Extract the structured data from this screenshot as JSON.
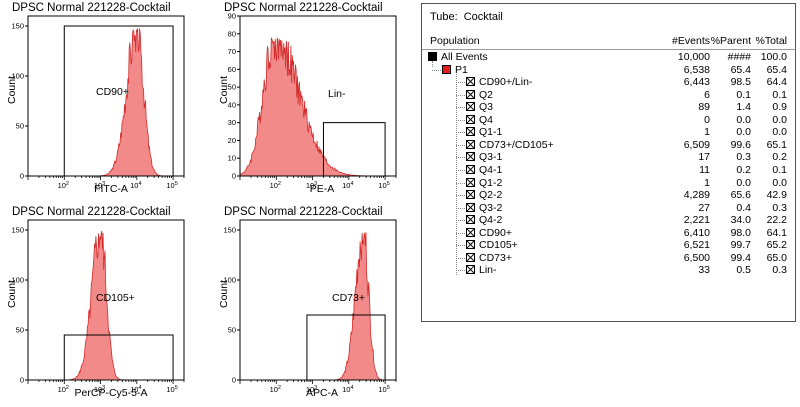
{
  "chart_data": [
    {
      "type": "histogram",
      "title": "DPSC Normal 221228-Cocktail",
      "xlabel": "FITC-A",
      "ylabel": "Count",
      "xscale": "log",
      "xlim": [
        10,
        200000
      ],
      "ylim": [
        0,
        160
      ],
      "yticks": [
        0,
        50,
        100,
        150
      ],
      "xticks": [
        {
          "e": 2
        },
        {
          "e": 3
        },
        {
          "e": 4
        },
        {
          "e": 5
        }
      ],
      "hist": {
        "peak_log10x": 4.0,
        "sigma": 0.22,
        "peak_count": 148,
        "skew": 1
      },
      "gate": {
        "label": "CD90+",
        "x_from": 100,
        "x_to": 100000,
        "y_level": 150,
        "style": "bracket"
      }
    },
    {
      "type": "histogram",
      "title": "DPSC Normal 221228-Cocktail",
      "xlabel": "PE-A",
      "ylabel": "Count",
      "xscale": "log",
      "xlim": [
        10,
        200000
      ],
      "ylim": [
        0,
        90
      ],
      "yticks": [
        0,
        10,
        20,
        30,
        40,
        50,
        60,
        70,
        80,
        90
      ],
      "xticks": [
        {
          "e": 2
        },
        {
          "e": 3
        },
        {
          "e": 4
        },
        {
          "e": 5
        }
      ],
      "hist": {
        "peak_log10x": 1.95,
        "sigma": 0.45,
        "peak_count": 78,
        "skew": -1
      },
      "gate": {
        "label": "Lin-",
        "x_from": 2000,
        "x_to": 100000,
        "y_level": 30,
        "style": "bracket"
      }
    },
    {
      "type": "histogram",
      "title": "DPSC Normal 221228-Cocktail",
      "xlabel": "PerCP-Cy5-5-A",
      "ylabel": "Count",
      "xscale": "log",
      "xlim": [
        10,
        200000
      ],
      "ylim": [
        0,
        160
      ],
      "yticks": [
        0,
        50,
        100,
        150
      ],
      "xticks": [
        {
          "e": 2
        },
        {
          "e": 3
        },
        {
          "e": 4
        },
        {
          "e": 5
        }
      ],
      "hist": {
        "peak_log10x": 3.0,
        "sigma": 0.19,
        "peak_count": 150,
        "skew": 1
      },
      "gate": {
        "label": "CD105+",
        "x_from": 100,
        "x_to": 100000,
        "y_level": 45,
        "style": "bracket"
      }
    },
    {
      "type": "histogram",
      "title": "DPSC Normal 221228-Cocktail",
      "xlabel": "APC-A",
      "ylabel": "Count",
      "xscale": "log",
      "xlim": [
        10,
        200000
      ],
      "ylim": [
        0,
        160
      ],
      "yticks": [
        0,
        50,
        100,
        150
      ],
      "xticks": [
        {
          "e": 2
        },
        {
          "e": 3
        },
        {
          "e": 4
        },
        {
          "e": 5
        }
      ],
      "hist": {
        "peak_log10x": 4.4,
        "sigma": 0.17,
        "peak_count": 150,
        "skew": 1
      },
      "gate": {
        "label": "CD73+",
        "x_from": 700,
        "x_to": 100000,
        "y_level": 65,
        "style": "bracket"
      }
    }
  ],
  "stats_table": {
    "tube_label": "Tube:",
    "tube_value": "Cocktail",
    "headers": {
      "population": "Population",
      "events": "#Events",
      "parent": "%Parent",
      "total": "%Total"
    },
    "rows": [
      {
        "name": "All Events",
        "events": "10,000",
        "parent": "####",
        "total": "100.0",
        "level": 0,
        "box": "black"
      },
      {
        "name": "P1",
        "events": "6,538",
        "parent": "65.4",
        "total": "65.4",
        "level": 1,
        "box": "red"
      },
      {
        "name": "CD90+/Lin-",
        "events": "6,443",
        "parent": "98.5",
        "total": "64.4",
        "level": 2,
        "box": "x"
      },
      {
        "name": "Q2",
        "events": "6",
        "parent": "0.1",
        "total": "0.1",
        "level": 2,
        "box": "x"
      },
      {
        "name": "Q3",
        "events": "89",
        "parent": "1.4",
        "total": "0.9",
        "level": 2,
        "box": "x"
      },
      {
        "name": "Q4",
        "events": "0",
        "parent": "0.0",
        "total": "0.0",
        "level": 2,
        "box": "x"
      },
      {
        "name": "Q1-1",
        "events": "1",
        "parent": "0.0",
        "total": "0.0",
        "level": 2,
        "box": "x"
      },
      {
        "name": "CD73+/CD105+",
        "events": "6,509",
        "parent": "99.6",
        "total": "65.1",
        "level": 2,
        "box": "x"
      },
      {
        "name": "Q3-1",
        "events": "17",
        "parent": "0.3",
        "total": "0.2",
        "level": 2,
        "box": "x"
      },
      {
        "name": "Q4-1",
        "events": "11",
        "parent": "0.2",
        "total": "0.1",
        "level": 2,
        "box": "x"
      },
      {
        "name": "Q1-2",
        "events": "1",
        "parent": "0.0",
        "total": "0.0",
        "level": 2,
        "box": "x"
      },
      {
        "name": "Q2-2",
        "events": "4,289",
        "parent": "65.6",
        "total": "42.9",
        "level": 2,
        "box": "x"
      },
      {
        "name": "Q3-2",
        "events": "27",
        "parent": "0.4",
        "total": "0.3",
        "level": 2,
        "box": "x"
      },
      {
        "name": "Q4-2",
        "events": "2,221",
        "parent": "34.0",
        "total": "22.2",
        "level": 2,
        "box": "x"
      },
      {
        "name": "CD90+",
        "events": "6,410",
        "parent": "98.0",
        "total": "64.1",
        "level": 2,
        "box": "x"
      },
      {
        "name": "CD105+",
        "events": "6,521",
        "parent": "99.7",
        "total": "65.2",
        "level": 2,
        "box": "x"
      },
      {
        "name": "CD73+",
        "events": "6,500",
        "parent": "99.4",
        "total": "65.0",
        "level": 2,
        "box": "x"
      },
      {
        "name": "Lin-",
        "events": "33",
        "parent": "0.5",
        "total": "0.3",
        "level": 2,
        "box": "x"
      }
    ]
  },
  "colors": {
    "fill": "#f28a8a",
    "stroke": "#d42a2a",
    "axis": "#000000",
    "red_box": "#e21b1b"
  }
}
